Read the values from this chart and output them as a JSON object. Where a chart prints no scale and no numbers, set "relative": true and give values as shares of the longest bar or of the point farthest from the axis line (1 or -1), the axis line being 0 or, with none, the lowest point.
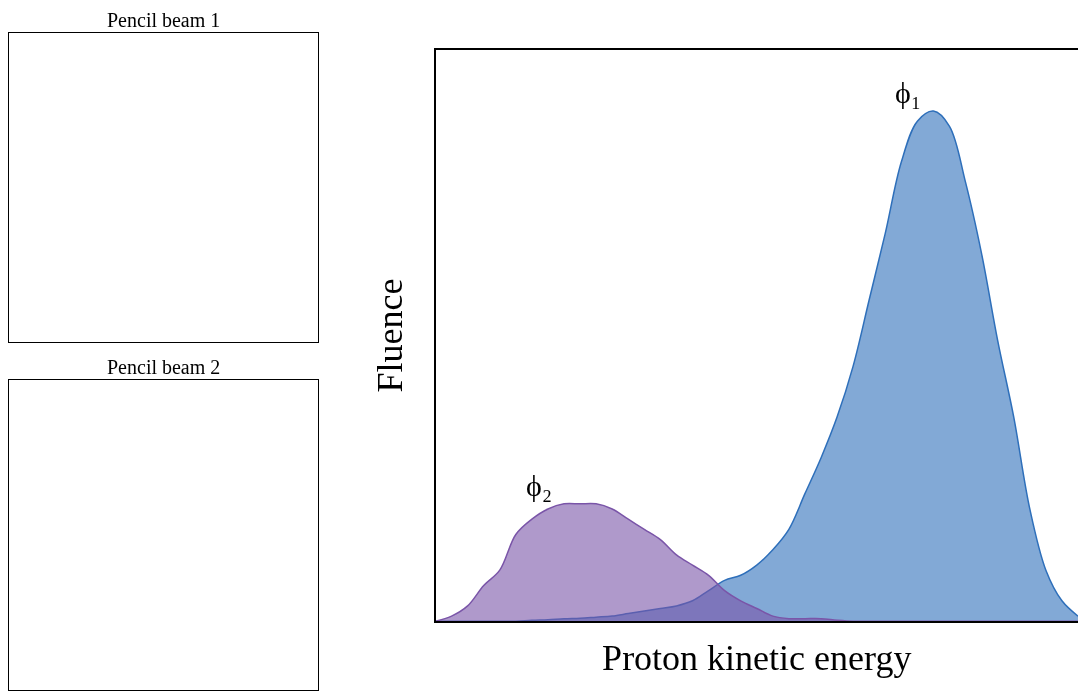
{
  "chart_data": [
    {
      "type": "other",
      "title": "Pencil beam 1"
    },
    {
      "type": "other",
      "title": "Pencil beam 2"
    },
    {
      "type": "area",
      "xlabel": "Proton kinetic energy",
      "ylabel": "Fluence",
      "relative": true,
      "legend": false,
      "categories": [
        null,
        null,
        null,
        null,
        null,
        null,
        null,
        null,
        null,
        null,
        null,
        null,
        null,
        null,
        null,
        null,
        null,
        null,
        null,
        null,
        null,
        null,
        null,
        null,
        null,
        null,
        null,
        null,
        null,
        null,
        null,
        null,
        null,
        null,
        null,
        null,
        null,
        null,
        null,
        null,
        null
      ],
      "series": [
        {
          "name": "ϕ₁",
          "color": "#2e6fba",
          "values": [
            0,
            0,
            0,
            0,
            0,
            0,
            0.002,
            0.003,
            0.005,
            0.006,
            0.008,
            0.01,
            0.015,
            0.02,
            0.025,
            0.03,
            0.04,
            0.06,
            0.08,
            0.09,
            0.11,
            0.14,
            0.18,
            0.25,
            0.32,
            0.4,
            0.5,
            0.63,
            0.76,
            0.9,
            0.98,
            1.0,
            0.97,
            0.86,
            0.72,
            0.55,
            0.4,
            0.22,
            0.1,
            0.04,
            0.01
          ]
        },
        {
          "name": "ϕ₂",
          "color": "#7a55a8",
          "values": [
            0,
            0.01,
            0.03,
            0.07,
            0.1,
            0.17,
            0.2,
            0.22,
            0.23,
            0.23,
            0.23,
            0.22,
            0.2,
            0.18,
            0.16,
            0.13,
            0.11,
            0.09,
            0.06,
            0.04,
            0.025,
            0.01,
            0.005,
            0.005,
            0.005,
            0.002,
            0,
            0,
            0,
            0,
            0,
            0,
            0,
            0,
            0,
            0,
            0,
            0,
            0,
            0,
            0
          ]
        }
      ]
    }
  ]
}
